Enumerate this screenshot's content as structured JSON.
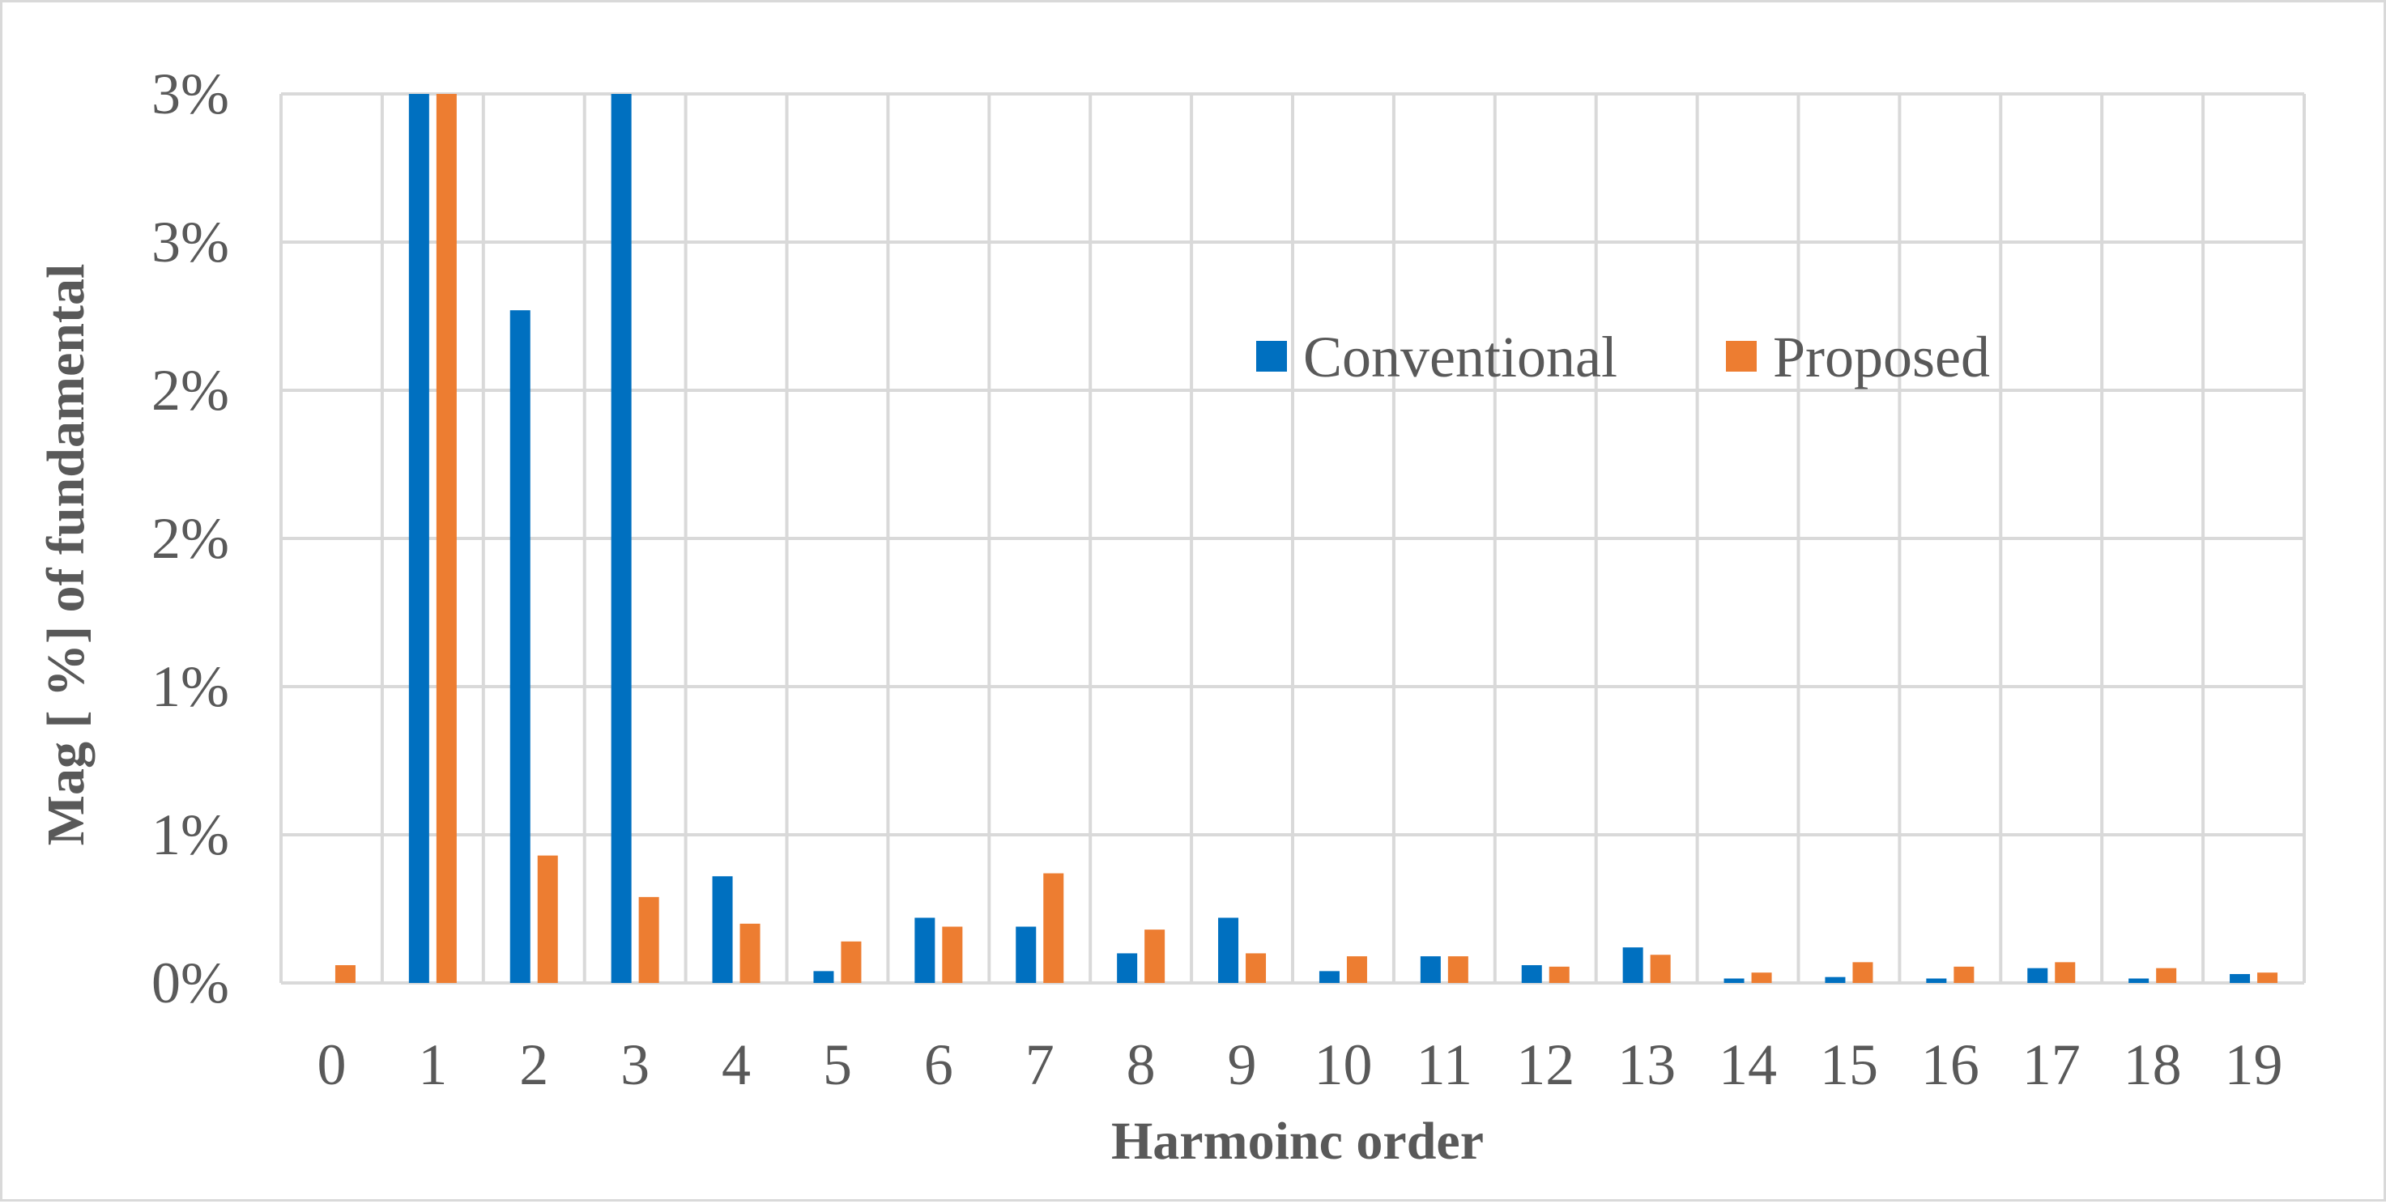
{
  "chart_data": {
    "type": "bar",
    "title": "",
    "xlabel": "Harmoinc order",
    "ylabel": "Mag [ %] of fundamental",
    "categories": [
      "0",
      "1",
      "2",
      "3",
      "4",
      "5",
      "6",
      "7",
      "8",
      "9",
      "10",
      "11",
      "12",
      "13",
      "14",
      "15",
      "16",
      "17",
      "18",
      "19"
    ],
    "ylim": [
      0,
      3
    ],
    "y_ticks": [
      0,
      0.5,
      1,
      1.5,
      2,
      2.5,
      3
    ],
    "y_tick_labels": [
      "0%",
      "1%",
      "1%",
      "2%",
      "2%",
      "3%",
      "3%"
    ],
    "grid": true,
    "legend_position": "top-right (inside plot)",
    "series": [
      {
        "name": "Conventional",
        "color": "#0070c0",
        "values": [
          0,
          3,
          2.27,
          3,
          0.36,
          0.04,
          0.22,
          0.19,
          0.1,
          0.22,
          0.04,
          0.09,
          0.06,
          0.12,
          0.015,
          0.02,
          0.015,
          0.05,
          0.015,
          0.03
        ]
      },
      {
        "name": "Proposed",
        "color": "#ed7d31",
        "values": [
          0.06,
          3,
          0.43,
          0.29,
          0.2,
          0.14,
          0.19,
          0.37,
          0.18,
          0.1,
          0.09,
          0.09,
          0.055,
          0.095,
          0.035,
          0.07,
          0.055,
          0.07,
          0.05,
          0.035
        ]
      }
    ]
  }
}
